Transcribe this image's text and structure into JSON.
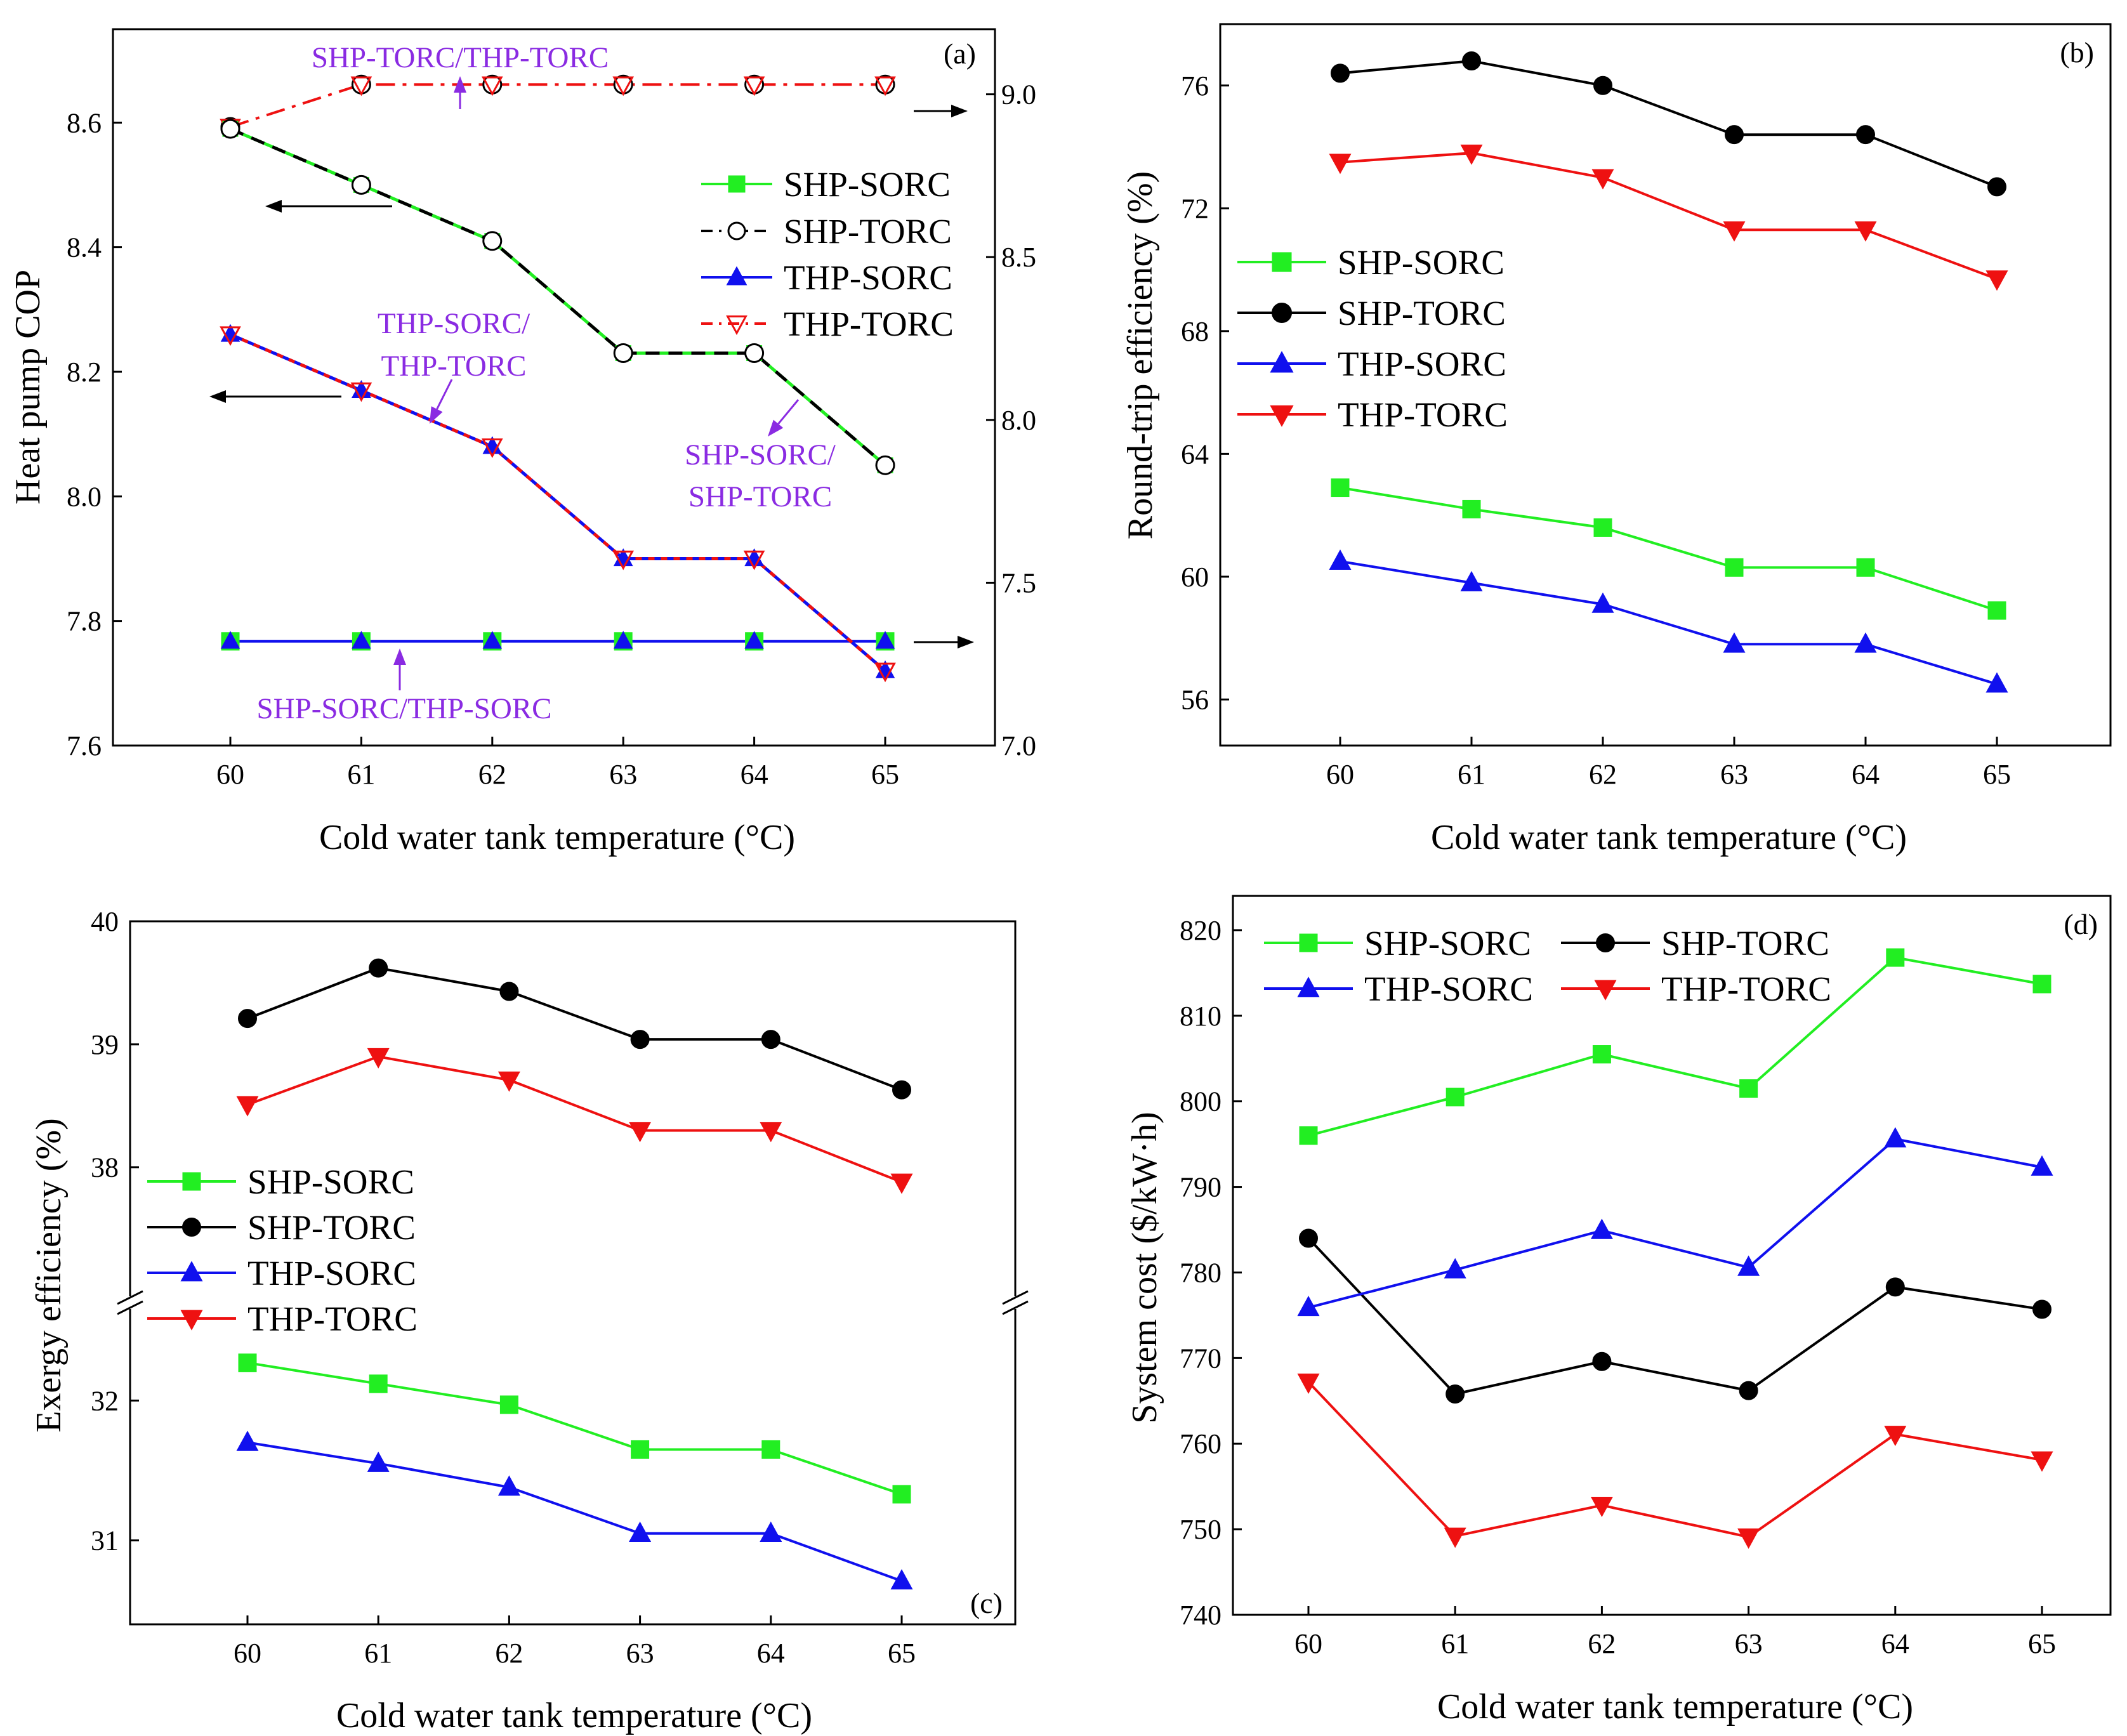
{
  "chart_data": [
    {
      "panel": "(a)",
      "type": "line",
      "xlabel": "Cold water tank temperature (°C)",
      "ylabel": "Heat pump COP",
      "x": [
        60,
        61,
        62,
        63,
        64,
        65
      ],
      "ylim": [
        7.6,
        8.75
      ],
      "yticks": [
        "7.6",
        "7.8",
        "8.0",
        "8.2",
        "8.4",
        "8.6"
      ],
      "y2lim": [
        7.0,
        9.2
      ],
      "y2ticks": [
        "7.0",
        "7.5",
        "8.0",
        "8.5",
        "9.0"
      ],
      "series": [
        {
          "name": "SHP-SORC",
          "axis": "left",
          "values": [
            8.59,
            8.5,
            8.41,
            8.23,
            8.23,
            8.05
          ]
        },
        {
          "name": "SHP-TORC",
          "axis": "left",
          "values": [
            8.59,
            8.5,
            8.41,
            8.23,
            8.23,
            8.05
          ]
        },
        {
          "name": "THP-SORC",
          "axis": "left",
          "values": [
            8.26,
            8.17,
            8.08,
            7.9,
            7.9,
            7.72
          ]
        },
        {
          "name": "THP-TORC",
          "axis": "left",
          "values": [
            8.26,
            8.17,
            8.08,
            7.9,
            7.9,
            7.72
          ]
        },
        {
          "name": "SHP-SORC/THP-SORC",
          "axis": "right",
          "values": [
            7.32,
            7.32,
            7.32,
            7.32,
            7.32,
            7.32
          ]
        },
        {
          "name": "SHP-TORC/THP-TORC",
          "axis": "right",
          "values": [
            8.9,
            9.03,
            9.03,
            9.03,
            9.03,
            9.03
          ]
        }
      ],
      "legend": [
        "SHP-SORC",
        "SHP-TORC",
        "THP-SORC",
        "THP-TORC"
      ],
      "annotations": [
        "SHP-TORC/THP-TORC",
        "THP-SORC/",
        "THP-TORC",
        "SHP-SORC/",
        "SHP-TORC",
        "SHP-SORC/THP-SORC"
      ]
    },
    {
      "panel": "(b)",
      "type": "line",
      "xlabel": "Cold water tank temperature (°C)",
      "ylabel": "Round-trip efficiency (%)",
      "x": [
        60,
        61,
        62,
        63,
        64,
        65
      ],
      "ylim": [
        54.5,
        78
      ],
      "yticks": [
        "56",
        "60",
        "64",
        "68",
        "72",
        "76"
      ],
      "series": [
        {
          "name": "SHP-SORC",
          "values": [
            62.9,
            62.2,
            61.6,
            60.3,
            60.3,
            58.9
          ]
        },
        {
          "name": "SHP-TORC",
          "values": [
            76.4,
            76.8,
            76.0,
            74.4,
            74.4,
            72.7
          ]
        },
        {
          "name": "THP-SORC",
          "values": [
            60.5,
            59.8,
            59.1,
            57.8,
            57.8,
            56.5
          ]
        },
        {
          "name": "THP-TORC",
          "values": [
            73.5,
            73.8,
            73.0,
            71.3,
            71.3,
            69.7
          ]
        }
      ],
      "legend": [
        "SHP-SORC",
        "SHP-TORC",
        "THP-SORC",
        "THP-TORC"
      ]
    },
    {
      "panel": "(c)",
      "type": "line",
      "xlabel": "Cold water tank temperature (°C)",
      "ylabel": "Exergy efficiency (%)",
      "x": [
        60,
        61,
        62,
        63,
        64,
        65
      ],
      "ylim_upper": [
        36.9,
        40
      ],
      "ylim_lower": [
        30.4,
        32.7
      ],
      "yticks": [
        "31",
        "32",
        "38",
        "39",
        "40"
      ],
      "series": [
        {
          "name": "SHP-SORC",
          "values": [
            32.27,
            32.12,
            31.97,
            31.65,
            31.65,
            31.33
          ]
        },
        {
          "name": "SHP-TORC",
          "values": [
            39.21,
            39.62,
            39.43,
            39.04,
            39.04,
            38.63
          ]
        },
        {
          "name": "THP-SORC",
          "values": [
            31.7,
            31.55,
            31.38,
            31.05,
            31.05,
            30.71
          ]
        },
        {
          "name": "THP-TORC",
          "values": [
            38.51,
            38.9,
            38.71,
            38.3,
            38.3,
            37.88
          ]
        }
      ],
      "legend": [
        "SHP-SORC",
        "SHP-TORC",
        "THP-SORC",
        "THP-TORC"
      ]
    },
    {
      "panel": "(d)",
      "type": "line",
      "xlabel": "Cold water tank temperature (°C)",
      "ylabel": "System cost ($/kW·h)",
      "x": [
        60,
        61,
        62,
        63,
        64,
        65
      ],
      "ylim": [
        740,
        824
      ],
      "yticks": [
        "740",
        "750",
        "760",
        "770",
        "780",
        "790",
        "800",
        "810",
        "820"
      ],
      "series": [
        {
          "name": "SHP-SORC",
          "values": [
            796.0,
            800.5,
            805.5,
            801.5,
            816.8,
            813.7
          ]
        },
        {
          "name": "SHP-TORC",
          "values": [
            784.0,
            765.8,
            769.6,
            766.2,
            778.3,
            775.7
          ]
        },
        {
          "name": "THP-SORC",
          "values": [
            775.9,
            780.3,
            784.9,
            780.6,
            795.6,
            792.3
          ]
        },
        {
          "name": "THP-TORC",
          "values": [
            767.2,
            749.2,
            752.8,
            749.1,
            761.1,
            758.1
          ]
        }
      ],
      "legend": [
        "SHP-SORC",
        "SHP-TORC",
        "THP-SORC",
        "THP-TORC"
      ]
    }
  ],
  "colors": {
    "SHP-SORC": "#22EE22",
    "SHP-TORC": "#000000",
    "THP-SORC": "#1010EE",
    "THP-TORC": "#EE1111",
    "annotation": "#8A2BE2"
  }
}
